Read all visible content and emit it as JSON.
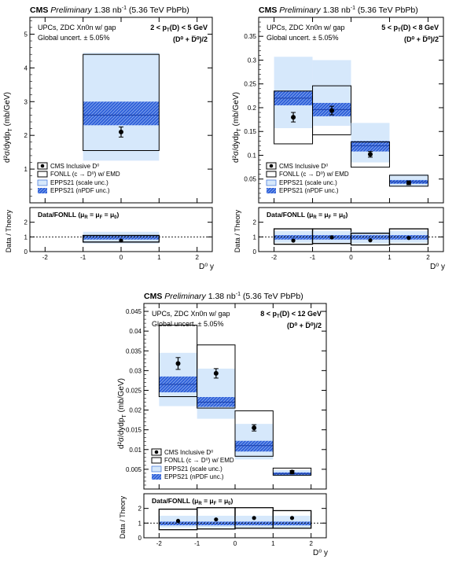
{
  "chart_data": [
    {
      "type": "bar",
      "header": {
        "experiment": "CMS",
        "status": "Preliminary",
        "lumi": "1.38 nb",
        "lumi_sup": "-1",
        "energy": "(5.36 TeV PbPb)"
      },
      "info": [
        "UPCs, ZDC Xn0n w/ gap",
        "Global uncert. ± 5.05%"
      ],
      "bin_label": "2 < p",
      "bin_label_sub": "T",
      "bin_label_rest": "(D",
      "bin_label_end": ") < 5 GeV",
      "species": "(D⁰ + D̅⁰)/2",
      "ylabel": "d²σ/dydp",
      "ylabel_sub": "T",
      "ylabel_unit": " (mb/GeV)",
      "xlabel": "D⁰ y",
      "ratio_label": "Data / Theory",
      "ratio_title": "Data/FONLL (μ",
      "ratio_title_rest": " = μ",
      "ratio_title_end": " = μ",
      "xlim": [
        -2.4,
        2.4
      ],
      "ylim": [
        0,
        5.5
      ],
      "ylim_ratio": [
        0,
        3
      ],
      "xticks": [
        "-2",
        "-1",
        "0",
        "1",
        "2"
      ],
      "yticks": [
        "1",
        "2",
        "3",
        "4",
        "5"
      ],
      "ratio_yticks": [
        "0",
        "1",
        "2"
      ],
      "bins": [
        {
          "x": [
            -1,
            1
          ],
          "data": 2.1,
          "err": 0.15,
          "fonll": [
            1.55,
            4.4
          ],
          "fonll_central": 2.75,
          "epps_scale": [
            1.25,
            4.45
          ],
          "epps_npdf": [
            2.3,
            3.0
          ],
          "epps_central": 2.6,
          "ratio": 0.75,
          "ratio_err": 0.1,
          "ratio_fonll": [
            0.65,
            1.1
          ],
          "ratio_epps": [
            0.55,
            1.35
          ],
          "ratio_epps_npdf": [
            0.82,
            1.12
          ]
        }
      ],
      "legend": [
        "CMS Inclusive D⁰",
        "FONLL (c → D⁰) w/ EMD",
        "EPPS21 (scale unc.)",
        "EPPS21 (nPDF unc.)"
      ]
    },
    {
      "type": "bar",
      "header": {
        "experiment": "CMS",
        "status": "Preliminary",
        "lumi": "1.38 nb",
        "lumi_sup": "-1",
        "energy": "(5.36 TeV PbPb)"
      },
      "info": [
        "UPCs, ZDC Xn0n w/ gap",
        "Global uncert. ± 5.05%"
      ],
      "bin_label": "5 < p",
      "bin_label_sub": "T",
      "bin_label_rest": "(D",
      "bin_label_end": ") < 8 GeV",
      "species": "(D⁰ + D̅⁰)/2",
      "ylabel": "d²σ/dydp",
      "ylabel_sub": "T",
      "ylabel_unit": " (mb/GeV)",
      "xlabel": "D⁰ y",
      "ratio_label": "Data / Theory",
      "ratio_title": "Data/FONLL (μ",
      "ratio_title_rest": " = μ",
      "ratio_title_end": " = μ",
      "xlim": [
        -2.4,
        2.4
      ],
      "ylim": [
        0,
        0.39
      ],
      "ylim_ratio": [
        0,
        3
      ],
      "xticks": [
        "-2",
        "-1",
        "0",
        "1",
        "2"
      ],
      "yticks": [
        "0.05",
        "0.1",
        "0.15",
        "0.2",
        "0.25",
        "0.3",
        "0.35"
      ],
      "ratio_yticks": [
        "0",
        "1",
        "2"
      ],
      "bins": [
        {
          "x": [
            -2,
            -1
          ],
          "data": 0.18,
          "err": 0.01,
          "fonll": [
            0.124,
            0.235
          ],
          "fonll_central": 0.2,
          "epps_scale": [
            0.157,
            0.307
          ],
          "epps_npdf": [
            0.205,
            0.235
          ],
          "epps_central": 0.22,
          "ratio": 0.75,
          "ratio_err": 0.07,
          "ratio_fonll": [
            0.5,
            1.55
          ],
          "ratio_epps": [
            0.6,
            1.4
          ],
          "ratio_epps_npdf": [
            0.82,
            1.12
          ]
        },
        {
          "x": [
            -1,
            0
          ],
          "data": 0.194,
          "err": 0.009,
          "fonll": [
            0.143,
            0.246
          ],
          "fonll_central": 0.19,
          "epps_scale": [
            0.162,
            0.3
          ],
          "epps_npdf": [
            0.182,
            0.21
          ],
          "epps_central": 0.196,
          "ratio": 0.97,
          "ratio_err": 0.06,
          "ratio_fonll": [
            0.55,
            1.55
          ],
          "ratio_epps": [
            0.6,
            1.4
          ],
          "ratio_epps_npdf": [
            0.82,
            1.12
          ]
        },
        {
          "x": [
            0,
            1
          ],
          "data": 0.102,
          "err": 0.006,
          "fonll": [
            0.075,
            0.128
          ],
          "fonll_central": 0.11,
          "epps_scale": [
            0.085,
            0.168
          ],
          "epps_npdf": [
            0.108,
            0.13
          ],
          "epps_central": 0.12,
          "ratio": 0.77,
          "ratio_err": 0.06,
          "ratio_fonll": [
            0.45,
            1.25
          ],
          "ratio_epps": [
            0.55,
            1.35
          ],
          "ratio_epps_npdf": [
            0.82,
            1.12
          ]
        },
        {
          "x": [
            1,
            2
          ],
          "data": 0.042,
          "err": 0.004,
          "fonll": [
            0.035,
            0.058
          ],
          "fonll_central": 0.045,
          "epps_scale": [
            0.034,
            0.06
          ],
          "epps_npdf": [
            0.04,
            0.048
          ],
          "epps_central": 0.044,
          "ratio": 0.93,
          "ratio_err": 0.05,
          "ratio_fonll": [
            0.5,
            1.55
          ],
          "ratio_epps": [
            0.6,
            1.4
          ],
          "ratio_epps_npdf": [
            0.82,
            1.12
          ]
        }
      ],
      "legend": [
        "CMS Inclusive D⁰",
        "FONLL (c → D⁰) w/ EMD",
        "EPPS21 (scale unc.)",
        "EPPS21 (nPDF unc.)"
      ]
    },
    {
      "type": "bar",
      "header": {
        "experiment": "CMS",
        "status": "Preliminary",
        "lumi": "1.38 nb",
        "lumi_sup": "-1",
        "energy": "(5.36 TeV PbPb)"
      },
      "info": [
        "UPCs, ZDC Xn0n w/ gap",
        "Global uncert. ± 5.05%"
      ],
      "bin_label": "8 < p",
      "bin_label_sub": "T",
      "bin_label_rest": "(D",
      "bin_label_end": ") < 12 GeV",
      "species": "(D⁰ + D̅⁰)/2",
      "ylabel": "d²σ/dydp",
      "ylabel_sub": "T",
      "ylabel_unit": " (mb/GeV)",
      "xlabel": "D⁰ y",
      "ratio_label": "Data / Theory",
      "ratio_title": "Data/FONLL (μ",
      "ratio_title_rest": " = μ",
      "ratio_title_end": " = μ",
      "xlim": [
        -2.4,
        2.4
      ],
      "ylim": [
        0,
        0.047
      ],
      "ylim_ratio": [
        0,
        3
      ],
      "xticks": [
        "-2",
        "-1",
        "0",
        "1",
        "2"
      ],
      "yticks": [
        "0.005",
        "0.01",
        "0.015",
        "0.02",
        "0.025",
        "0.03",
        "0.035",
        "0.04",
        "0.045"
      ],
      "ratio_yticks": [
        "0",
        "1",
        "2"
      ],
      "bins": [
        {
          "x": [
            -2,
            -1
          ],
          "data": 0.0318,
          "err": 0.0015,
          "fonll": [
            0.0234,
            0.0415
          ],
          "fonll_central": 0.03,
          "epps_scale": [
            0.021,
            0.0345
          ],
          "epps_npdf": [
            0.0245,
            0.0285
          ],
          "epps_central": 0.0265,
          "ratio": 1.15,
          "ratio_err": 0.1,
          "ratio_fonll": [
            0.55,
            1.95
          ],
          "ratio_epps": [
            0.7,
            1.5
          ],
          "ratio_epps_npdf": [
            0.85,
            1.1
          ]
        },
        {
          "x": [
            -1,
            0
          ],
          "data": 0.0293,
          "err": 0.0012,
          "fonll": [
            0.0205,
            0.0365
          ],
          "fonll_central": 0.025,
          "epps_scale": [
            0.0178,
            0.0305
          ],
          "epps_npdf": [
            0.0208,
            0.0233
          ],
          "epps_central": 0.022,
          "ratio": 1.25,
          "ratio_err": 0.1,
          "ratio_fonll": [
            0.6,
            2.05
          ],
          "ratio_epps": [
            0.7,
            1.5
          ],
          "ratio_epps_npdf": [
            0.85,
            1.1
          ]
        },
        {
          "x": [
            0,
            1
          ],
          "data": 0.0155,
          "err": 0.0008,
          "fonll": [
            0.0083,
            0.0198
          ],
          "fonll_central": 0.013,
          "epps_scale": [
            0.0075,
            0.0165
          ],
          "epps_npdf": [
            0.0095,
            0.0122
          ],
          "epps_central": 0.011,
          "ratio": 1.35,
          "ratio_err": 0.1,
          "ratio_fonll": [
            0.65,
            2.05
          ],
          "ratio_epps": [
            0.7,
            1.5
          ],
          "ratio_epps_npdf": [
            0.85,
            1.1
          ]
        },
        {
          "x": [
            1,
            2
          ],
          "data": 0.0043,
          "err": 0.0004,
          "fonll": [
            0.0035,
            0.0053
          ],
          "fonll_central": 0.0043,
          "epps_scale": [
            0.0032,
            0.0048
          ],
          "epps_npdf": [
            0.0036,
            0.0042
          ],
          "epps_central": 0.0039,
          "ratio": 1.35,
          "ratio_err": 0.1,
          "ratio_fonll": [
            0.65,
            1.85
          ],
          "ratio_epps": [
            0.7,
            1.5
          ],
          "ratio_epps_npdf": [
            0.85,
            1.1
          ]
        }
      ],
      "legend": [
        "CMS Inclusive D⁰",
        "FONLL (c → D⁰) w/ EMD",
        "EPPS21 (scale unc.)",
        "EPPS21 (nPDF unc.)"
      ]
    }
  ]
}
